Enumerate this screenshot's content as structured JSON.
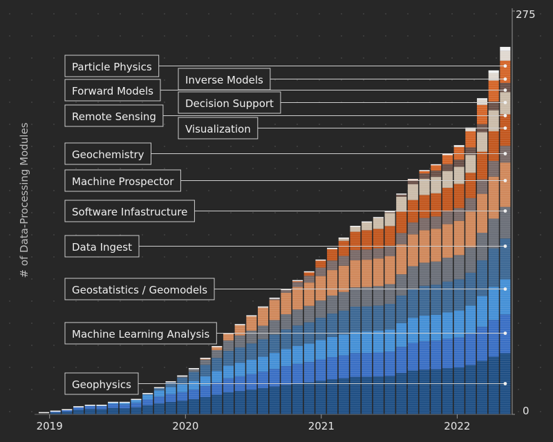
{
  "chart_data": {
    "type": "bar",
    "stacked": true,
    "ylabel": "# of Data-Processing Modules",
    "ylim": [
      0,
      275
    ],
    "y_tick_labels": [
      "0",
      "275"
    ],
    "x_tick_labels": [
      "2019",
      "2020",
      "2021",
      "2022"
    ],
    "x_tick_positions": [
      2019.0,
      2020.0,
      2021.0,
      2022.0
    ],
    "x_range": [
      2018.92,
      2022.4
    ],
    "grid": "dotted",
    "legend": "direct labels with leader lines, left of last bar",
    "series": [
      {
        "name": "Geophysics",
        "color": "#1f4f84"
      },
      {
        "name": "Machine Learning Analysis",
        "color": "#3a6fc4"
      },
      {
        "name": "Geostatistics / Geomodels",
        "color": "#4590d6"
      },
      {
        "name": "Data Ingest",
        "color": "#3d6894"
      },
      {
        "name": "Software Infastructure",
        "color": "#6b6f78"
      },
      {
        "name": "Machine Prospector",
        "color": "#d0885b"
      },
      {
        "name": "Geochemistry",
        "color": "#7a6a68"
      },
      {
        "name": "Visualization",
        "color": "#c2571f"
      },
      {
        "name": "Decision Support",
        "color": "#cbbcaa"
      },
      {
        "name": "Inverse Models",
        "color": "#6a5048"
      },
      {
        "name": "Forward Models",
        "color": "#d4662a"
      },
      {
        "name": "Remote Sensing",
        "color": "#e0d8d0"
      },
      {
        "name": "Particle Physics",
        "color": "#f2f2f2"
      }
    ],
    "totals": [
      1,
      2,
      3,
      5,
      6,
      6,
      8,
      8,
      10,
      14,
      18,
      22,
      26,
      31,
      38,
      46,
      55,
      61,
      67,
      73,
      79,
      85,
      91,
      97,
      105,
      113,
      120,
      128,
      131,
      134,
      138,
      150,
      160,
      166,
      170,
      177,
      183,
      195,
      215,
      234,
      250
    ]
  }
}
